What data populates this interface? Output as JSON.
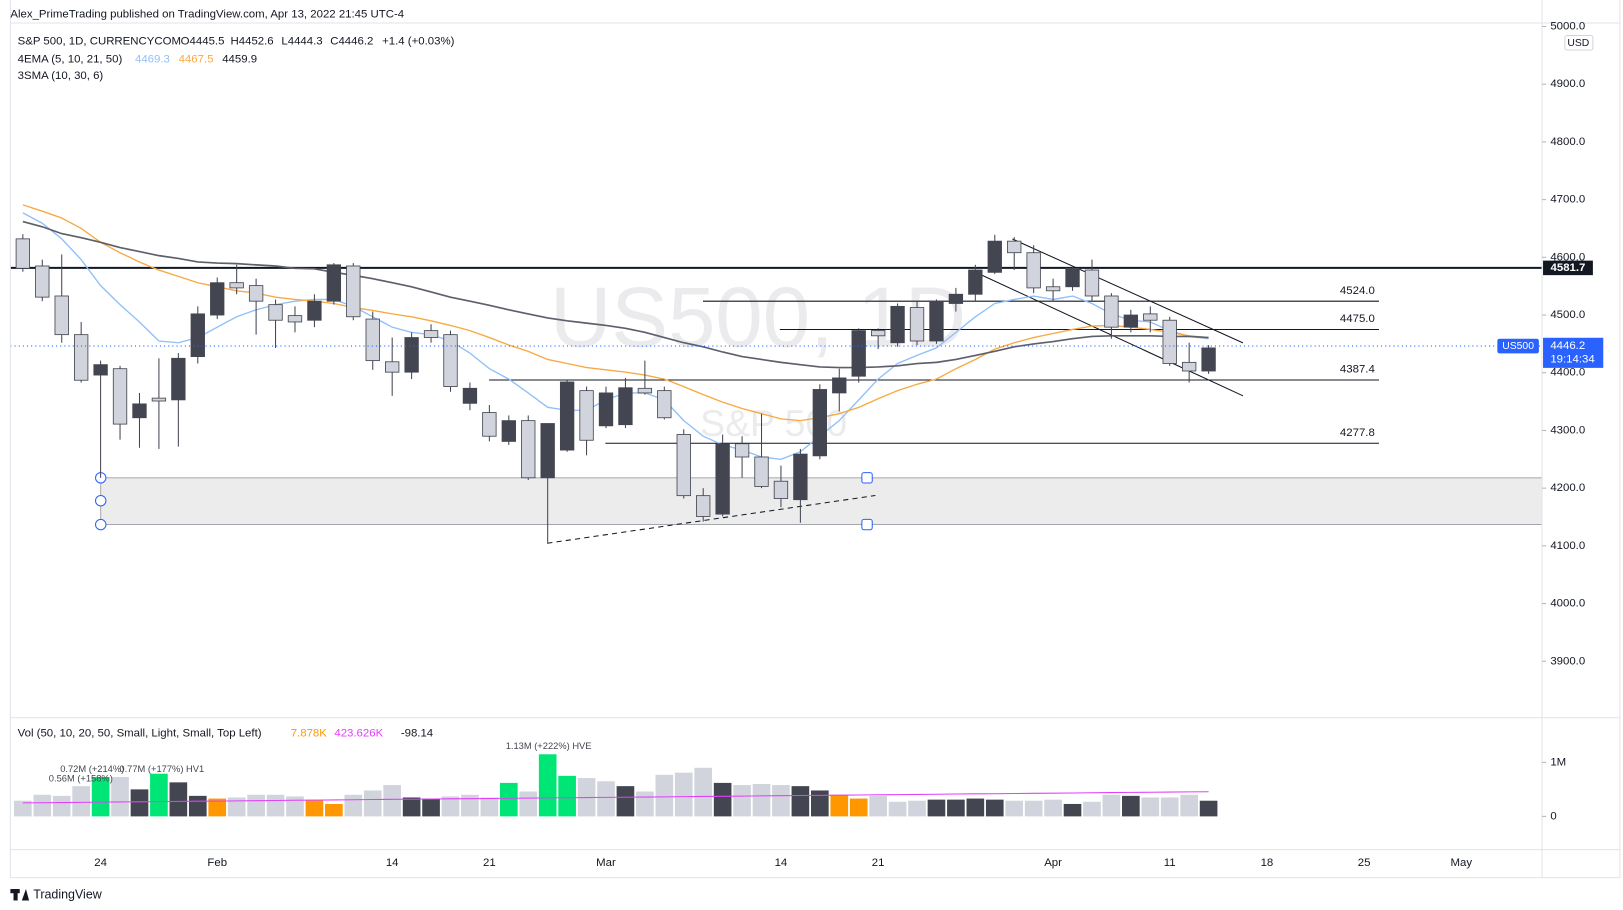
{
  "header": {
    "text": "Alex_PrimeTrading published on TradingView.com, Apr 13, 2022 21:45 UTC-4"
  },
  "footer": {
    "brand": "TradingView"
  },
  "chart_data": {
    "type": "candlestick",
    "symbol": "S&P 500, 1D, CURRENCYCOM",
    "ohlc_labels": [
      "O4445.5",
      "H4452.6",
      "L4444.3",
      "C4446.2"
    ],
    "change": "+1.4 (+0.03%)",
    "indicators": [
      {
        "label": "4EMA (5, 10, 21, 50)",
        "values": [
          "4469.3",
          "4467.5",
          "4459.9"
        ]
      },
      {
        "label": "3SMA (10, 30, 6)"
      }
    ],
    "watermark": "US500, 1D",
    "watermark_sub": "S&P 500",
    "currency": "USD",
    "categories": [
      null,
      null,
      null,
      null,
      "24",
      null,
      null,
      null,
      null,
      null,
      "Feb",
      null,
      null,
      null,
      null,
      null,
      null,
      null,
      null,
      "14",
      null,
      null,
      null,
      null,
      "21",
      null,
      null,
      null,
      null,
      null,
      "Mar",
      null,
      null,
      null,
      null,
      null,
      null,
      null,
      null,
      "14",
      null,
      null,
      null,
      null,
      "21",
      null,
      null,
      null,
      null,
      null,
      null,
      null,
      null,
      "Apr",
      null,
      null,
      null,
      null,
      null,
      "11",
      null,
      null,
      null,
      null,
      "18",
      null,
      null,
      null,
      null,
      "25",
      null,
      null,
      null,
      null,
      "May"
    ],
    "open": [
      4632,
      4585,
      4533,
      4466,
      4396,
      4407,
      4322,
      4356,
      4353,
      4428,
      4500,
      4556,
      4551,
      4518,
      4499,
      4491,
      4524,
      4585,
      4493,
      4419,
      4401,
      4473,
      4466,
      4347,
      4331,
      4281,
      4317,
      4218,
      4266,
      4369,
      4308,
      4310,
      4373,
      4369,
      4293,
      4187,
      4155,
      4277,
      4254,
      4212,
      4180,
      4256,
      4365,
      4394,
      4473,
      4452,
      4513,
      4455,
      4520,
      4536,
      4574,
      4628,
      4608,
      4549,
      4549,
      4578,
      4533,
      4479,
      4502,
      4491,
      4418,
      4403,
      null,
      null,
      null,
      null,
      null,
      null,
      null,
      null,
      null,
      null,
      null,
      null,
      null
    ],
    "high": [
      4640,
      4596,
      4605,
      4488,
      4421,
      4412,
      4365,
      4425,
      4434,
      4515,
      4565,
      4587,
      4563,
      4527,
      4515,
      4536,
      4590,
      4590,
      4506,
      4461,
      4470,
      4484,
      4473,
      4383,
      4344,
      4326,
      4326,
      4312,
      4387,
      4376,
      4376,
      4391,
      4421,
      4376,
      4302,
      4200,
      4293,
      4290,
      4329,
      4239,
      4268,
      4380,
      4407,
      4477,
      4477,
      4520,
      4524,
      4527,
      4547,
      4587,
      4639,
      4635,
      4621,
      4563,
      4585,
      4596,
      4538,
      4509,
      4515,
      4497,
      4452,
      4448,
      null,
      null,
      null,
      null,
      null,
      null,
      null,
      null,
      null,
      null,
      null,
      null,
      null
    ],
    "low": [
      4575,
      4524,
      4452,
      4383,
      4218,
      4284,
      4270,
      4268,
      4272,
      4416,
      4493,
      4536,
      4466,
      4443,
      4470,
      4479,
      4518,
      4491,
      4405,
      4360,
      4389,
      4452,
      4367,
      4335,
      4281,
      4275,
      4214,
      4104,
      4263,
      4257,
      4304,
      4304,
      4362,
      4319,
      4182,
      4142,
      4151,
      4218,
      4200,
      4167,
      4140,
      4250,
      4333,
      4383,
      4441,
      4445,
      4448,
      4450,
      4506,
      4524,
      4571,
      4578,
      4538,
      4524,
      4542,
      4524,
      4459,
      4470,
      4470,
      4412,
      4383,
      4398,
      null,
      null,
      null,
      null,
      null,
      null,
      null,
      null,
      null,
      null,
      null,
      null,
      null
    ],
    "close": [
      4581,
      4531,
      4466,
      4387,
      4414,
      4311,
      4346,
      4351,
      4425,
      4502,
      4556,
      4547,
      4524,
      4491,
      4488,
      4524,
      4587,
      4497,
      4421,
      4401,
      4461,
      4461,
      4376,
      4373,
      4290,
      4317,
      4218,
      4312,
      4384,
      4283,
      4365,
      4374,
      4365,
      4322,
      4187,
      4151,
      4277,
      4254,
      4203,
      4182,
      4259,
      4371,
      4391,
      4473,
      4464,
      4515,
      4455,
      4524,
      4536,
      4578,
      4628,
      4608,
      4547,
      4542,
      4581,
      4533,
      4479,
      4500,
      4491,
      4416,
      4403,
      4443,
      null,
      null,
      null,
      null,
      null,
      null,
      null,
      null,
      null,
      null,
      null,
      null,
      null
    ],
    "up_color": "#434651",
    "down_color": "#d1d4dc",
    "lines": [
      {
        "color": "#90bff9",
        "values": [
          4677,
          4659,
          4632,
          4596,
          4551,
          4518,
          4488,
          4455,
          4452,
          4461,
          4479,
          4497,
          4509,
          4518,
          4524,
          4527,
          4527,
          4515,
          4497,
          4479,
          4470,
          4466,
          4455,
          4434,
          4407,
          4389,
          4365,
          4340,
          4335,
          4335,
          4353,
          4365,
          4365,
          4353,
          4317,
          4290,
          4275,
          4266,
          4254,
          4250,
          4263,
          4290,
          4317,
          4353,
          4389,
          4416,
          4430,
          4443,
          4470,
          4497,
          4520,
          4527,
          4533,
          4527,
          4533,
          4520,
          4502,
          4491,
          4488,
          4473,
          4463,
          4459,
          null,
          null,
          null,
          null,
          null,
          null,
          null,
          null,
          null,
          null,
          null,
          null,
          null
        ]
      },
      {
        "color": "#f7a943",
        "values": [
          4691,
          4680,
          4668,
          4650,
          4626,
          4608,
          4592,
          4578,
          4567,
          4556,
          4549,
          4542,
          4538,
          4531,
          4527,
          4524,
          4520,
          4513,
          4508,
          4502,
          4497,
          4490,
          4482,
          4473,
          4461,
          4448,
          4437,
          4423,
          4416,
          4409,
          4405,
          4401,
          4396,
          4389,
          4376,
          4362,
          4349,
          4338,
          4329,
          4320,
          4317,
          4322,
          4329,
          4340,
          4355,
          4369,
          4380,
          4389,
          4407,
          4423,
          4441,
          4452,
          4461,
          4468,
          4475,
          4481,
          4482,
          4479,
          4475,
          4470,
          4464,
          4461,
          null,
          null,
          null,
          null,
          null,
          null,
          null,
          null,
          null,
          null,
          null,
          null,
          null
        ]
      },
      {
        "color": "#5d606b",
        "values": [
          4662,
          4653,
          4641,
          4634,
          4626,
          4617,
          4610,
          4603,
          4598,
          4592,
          4590,
          4589,
          4587,
          4585,
          4581,
          4580,
          4574,
          4569,
          4563,
          4556,
          4549,
          4540,
          4531,
          4524,
          4517,
          4509,
          4502,
          4495,
          4490,
          4486,
          4482,
          4477,
          4470,
          4461,
          4452,
          4445,
          4436,
          4428,
          4423,
          4418,
          4414,
          4410,
          4409,
          4409,
          4410,
          4412,
          4416,
          4418,
          4423,
          4430,
          4437,
          4445,
          4450,
          4454,
          4459,
          4463,
          4464,
          4464,
          4464,
          4463,
          4463,
          4461,
          null,
          null,
          null,
          null,
          null,
          null,
          null,
          null,
          null,
          null,
          null,
          null,
          null
        ]
      }
    ],
    "ylim": [
      3804,
      5006
    ],
    "yticks": [
      {
        "value": 3900,
        "label": "3900.0"
      },
      {
        "value": 4000,
        "label": "4000.0"
      },
      {
        "value": 4100,
        "label": "4100.0"
      },
      {
        "value": 4200,
        "label": "4200.0"
      },
      {
        "value": 4300,
        "label": "4300.0"
      },
      {
        "value": 4400,
        "label": "4400.0"
      },
      {
        "value": 4500,
        "label": "4500.0"
      },
      {
        "value": 4600,
        "label": "4600.0"
      },
      {
        "value": 4700,
        "label": "4700.0"
      },
      {
        "value": 4800,
        "label": "4800.0"
      },
      {
        "value": 4900,
        "label": "4900.0"
      },
      {
        "value": 5000,
        "label": "5000.0"
      }
    ],
    "levels": [
      {
        "value": 4581.7,
        "label": "4581.7"
      },
      {
        "value": 4524.0,
        "label": "4524.0"
      },
      {
        "value": 4475.0,
        "label": "4475.0"
      },
      {
        "value": 4387.4,
        "label": "4387.4"
      },
      {
        "value": 4277.8,
        "label": "4277.8"
      }
    ],
    "last_price": {
      "symbol": "US500",
      "value": 4446.2,
      "label": "4446.2",
      "countdown": "19:14:34",
      "color": "#2962ff"
    },
    "volume": {
      "legend": "Vol (50, 10, 20, 50, Small, Light, Small, Top Left)",
      "legend_values": [
        "7.878K",
        "423.626K",
        "-98.14"
      ],
      "notes": [
        "1.13M (+222%) HVE",
        "0.72M (+214%)",
        "0.77M (+177%) HV1",
        "0.56M (+158%)"
      ],
      "values": [
        290000,
        400000,
        380000,
        560000,
        730000,
        730000,
        500000,
        790000,
        630000,
        380000,
        330000,
        350000,
        400000,
        400000,
        370000,
        310000,
        230000,
        400000,
        480000,
        580000,
        350000,
        330000,
        370000,
        400000,
        350000,
        620000,
        460000,
        1150000,
        750000,
        710000,
        650000,
        560000,
        460000,
        770000,
        810000,
        900000,
        620000,
        580000,
        600000,
        580000,
        560000,
        480000,
        400000,
        330000,
        380000,
        270000,
        290000,
        310000,
        310000,
        330000,
        310000,
        290000,
        290000,
        310000,
        230000,
        270000,
        400000,
        380000,
        350000,
        350000,
        400000,
        290000,
        null,
        null,
        null,
        null,
        null,
        null,
        null,
        null,
        null,
        null,
        null,
        null,
        null
      ],
      "colors": [
        "#d1d4dc",
        "#d1d4dc",
        "#d1d4dc",
        "#d1d4dc",
        "#00e676",
        "#d1d4dc",
        "#434651",
        "#00e676",
        "#434651",
        "#434651",
        "#ff9800",
        "#d1d4dc",
        "#d1d4dc",
        "#d1d4dc",
        "#d1d4dc",
        "#ff9800",
        "#ff9800",
        "#d1d4dc",
        "#d1d4dc",
        "#d1d4dc",
        "#434651",
        "#434651",
        "#d1d4dc",
        "#d1d4dc",
        "#d1d4dc",
        "#00e676",
        "#d1d4dc",
        "#00e676",
        "#00e676",
        "#d1d4dc",
        "#d1d4dc",
        "#434651",
        "#d1d4dc",
        "#d1d4dc",
        "#d1d4dc",
        "#d1d4dc",
        "#434651",
        "#d1d4dc",
        "#d1d4dc",
        "#d1d4dc",
        "#434651",
        "#434651",
        "#ff9800",
        "#ff9800",
        "#d1d4dc",
        "#d1d4dc",
        "#d1d4dc",
        "#434651",
        "#434651",
        "#434651",
        "#434651",
        "#d1d4dc",
        "#d1d4dc",
        "#d1d4dc",
        "#434651",
        "#d1d4dc",
        "#d1d4dc",
        "#434651",
        "#d1d4dc",
        "#d1d4dc",
        "#d1d4dc",
        "#434651",
        null,
        null,
        null,
        null,
        null,
        null,
        null,
        null,
        null,
        null,
        null,
        null,
        null
      ],
      "ma_color": "#e040fb",
      "ma": [
        250000,
        253000,
        257000,
        260000,
        264000,
        267000,
        270000,
        274000,
        277000,
        281000,
        284000,
        287000,
        291000,
        294000,
        298000,
        301000,
        304000,
        308000,
        311000,
        315000,
        318000,
        321000,
        325000,
        328000,
        332000,
        335000,
        338000,
        342000,
        345000,
        349000,
        352000,
        355000,
        359000,
        362000,
        366000,
        369000,
        372000,
        376000,
        379000,
        383000,
        386000,
        389000,
        393000,
        396000,
        400000,
        403000,
        406000,
        410000,
        413000,
        417000,
        420000,
        423000,
        427000,
        430000,
        434000,
        437000,
        440000,
        444000,
        447000,
        451000,
        454000,
        457000,
        null,
        null,
        null,
        null,
        null,
        null,
        null,
        null,
        null,
        null,
        null,
        null,
        null
      ],
      "ylim": [
        -615000,
        1808000
      ],
      "yticks": [
        0,
        {
          "value": 1000000,
          "label": "1M"
        }
      ]
    }
  }
}
